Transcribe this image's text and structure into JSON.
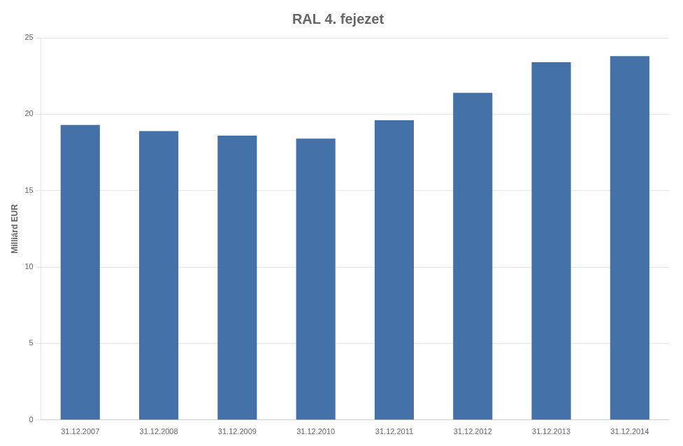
{
  "chart_data": {
    "type": "bar",
    "title": "RAL 4. fejezet",
    "ylabel": "Milliárd EUR",
    "categories": [
      "31.12.2007",
      "31.12.2008",
      "31.12.2009",
      "31.12.2010",
      "31.12.2011",
      "31.12.2012",
      "31.12.2013",
      "31.12.2014"
    ],
    "values": [
      19.3,
      18.9,
      18.6,
      18.4,
      19.6,
      21.4,
      23.4,
      23.8
    ],
    "color": "#4472a8",
    "ylim": [
      0,
      25
    ],
    "yticks": [
      0,
      5,
      10,
      15,
      20,
      25
    ],
    "grid": true
  }
}
